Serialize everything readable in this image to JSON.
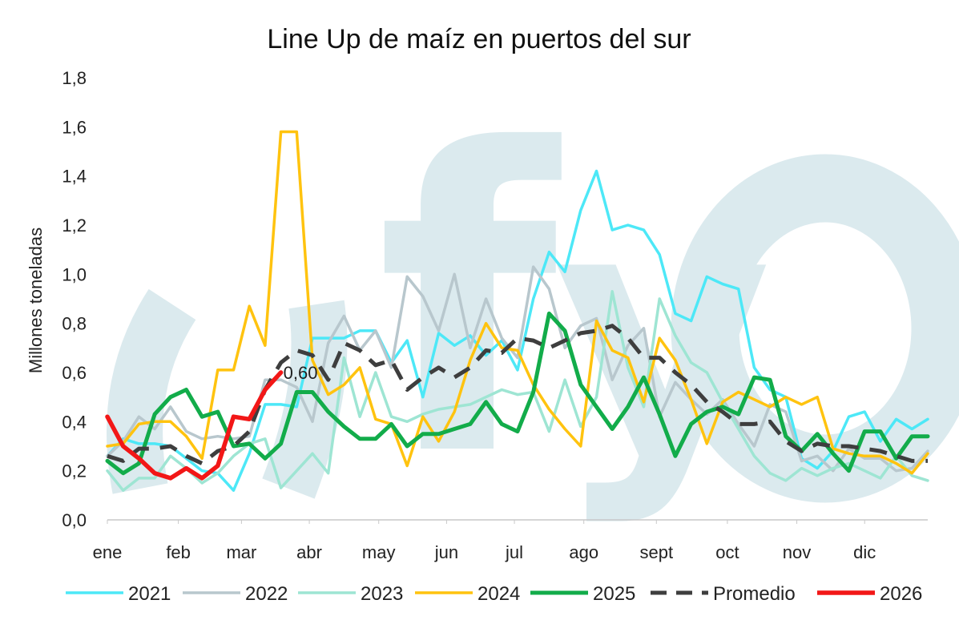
{
  "chart_data": {
    "type": "line",
    "title": "Line Up de maíz en puertos del sur",
    "xlabel": "",
    "ylabel": "Millones toneladas",
    "ylim": [
      0,
      1.8
    ],
    "yticks": [
      "0,0",
      "0,2",
      "0,4",
      "0,6",
      "0,8",
      "1,0",
      "1,2",
      "1,4",
      "1,6",
      "1,8"
    ],
    "xlim": [
      1,
      53
    ],
    "month_labels": [
      "ene",
      "feb",
      "mar",
      "abr",
      "may",
      "jun",
      "jul",
      "ago",
      "sept",
      "oct",
      "nov",
      "dic"
    ],
    "month_label_weeks": [
      1,
      5.5,
      9.5,
      13.8,
      18.2,
      22.5,
      26.8,
      31.2,
      35.8,
      40.3,
      44.7,
      49
    ],
    "watermark": "fyo",
    "annotation": {
      "text": "0,60",
      "x": 12,
      "y": 0.6
    },
    "legend_position": "bottom",
    "grid": false,
    "series": [
      {
        "name": "2021",
        "color": "#4de8f7",
        "width": 3.5,
        "dash": false,
        "values": [
          0.26,
          0.33,
          0.31,
          0.31,
          0.3,
          0.25,
          0.2,
          0.19,
          0.12,
          0.27,
          0.47,
          0.47,
          0.46,
          0.74,
          0.74,
          0.74,
          0.77,
          0.77,
          0.64,
          0.73,
          0.5,
          0.76,
          0.71,
          0.75,
          0.67,
          0.73,
          0.61,
          0.9,
          1.09,
          1.01,
          1.26,
          1.42,
          1.18,
          1.2,
          1.18,
          1.08,
          0.84,
          0.81,
          0.99,
          0.96,
          0.94,
          0.62,
          0.53,
          0.5,
          0.25,
          0.21,
          0.28,
          0.42,
          0.44,
          0.32,
          0.41,
          0.37,
          0.41
        ]
      },
      {
        "name": "2022",
        "color": "#b8c7cd",
        "width": 3.5,
        "dash": false,
        "values": [
          0.26,
          0.32,
          0.42,
          0.37,
          0.46,
          0.36,
          0.33,
          0.34,
          0.33,
          0.34,
          0.57,
          0.57,
          0.54,
          0.4,
          0.72,
          0.83,
          0.69,
          0.77,
          0.62,
          0.99,
          0.91,
          0.77,
          1.0,
          0.7,
          0.9,
          0.74,
          0.66,
          1.03,
          0.94,
          0.7,
          0.79,
          0.82,
          0.57,
          0.71,
          0.78,
          0.42,
          0.56,
          0.49,
          0.43,
          0.49,
          0.39,
          0.3,
          0.47,
          0.44,
          0.24,
          0.26,
          0.2,
          0.29,
          0.25,
          0.25,
          0.2,
          0.21,
          0.28
        ]
      },
      {
        "name": "2023",
        "color": "#9ee5d3",
        "width": 3.5,
        "dash": false,
        "values": [
          0.2,
          0.12,
          0.17,
          0.17,
          0.26,
          0.21,
          0.15,
          0.19,
          0.26,
          0.31,
          0.33,
          0.13,
          0.2,
          0.27,
          0.19,
          0.66,
          0.42,
          0.6,
          0.42,
          0.4,
          0.43,
          0.45,
          0.46,
          0.47,
          0.5,
          0.53,
          0.51,
          0.52,
          0.36,
          0.57,
          0.38,
          0.5,
          0.93,
          0.62,
          0.46,
          0.9,
          0.75,
          0.64,
          0.6,
          0.48,
          0.37,
          0.26,
          0.19,
          0.16,
          0.21,
          0.18,
          0.21,
          0.23,
          0.2,
          0.17,
          0.26,
          0.18,
          0.16
        ]
      },
      {
        "name": "2024",
        "color": "#ffc30f",
        "width": 3.5,
        "dash": false,
        "values": [
          0.3,
          0.31,
          0.39,
          0.4,
          0.4,
          0.34,
          0.25,
          0.61,
          0.61,
          0.87,
          0.71,
          1.58,
          1.58,
          0.65,
          0.51,
          0.55,
          0.62,
          0.41,
          0.39,
          0.22,
          0.42,
          0.32,
          0.44,
          0.65,
          0.8,
          0.7,
          0.69,
          0.55,
          0.45,
          0.37,
          0.3,
          0.81,
          0.69,
          0.66,
          0.48,
          0.74,
          0.65,
          0.49,
          0.31,
          0.48,
          0.52,
          0.49,
          0.46,
          0.5,
          0.47,
          0.5,
          0.29,
          0.27,
          0.26,
          0.26,
          0.23,
          0.19,
          0.27
        ]
      },
      {
        "name": "2025",
        "color": "#12ac4a",
        "width": 5,
        "dash": false,
        "values": [
          0.24,
          0.19,
          0.23,
          0.43,
          0.5,
          0.53,
          0.42,
          0.44,
          0.3,
          0.31,
          0.25,
          0.31,
          0.52,
          0.52,
          0.44,
          0.38,
          0.33,
          0.33,
          0.39,
          0.3,
          0.35,
          0.35,
          0.37,
          0.39,
          0.48,
          0.39,
          0.36,
          0.52,
          0.84,
          0.77,
          0.55,
          0.46,
          0.37,
          0.46,
          0.58,
          0.43,
          0.26,
          0.39,
          0.44,
          0.46,
          0.43,
          0.58,
          0.57,
          0.34,
          0.28,
          0.35,
          0.27,
          0.2,
          0.36,
          0.36,
          0.25,
          0.34,
          0.34
        ]
      },
      {
        "name": "Promedio",
        "color": "#3e3e3e",
        "width": 5,
        "dash": true,
        "values": [
          0.26,
          0.24,
          0.29,
          0.29,
          0.3,
          0.26,
          0.23,
          0.28,
          0.3,
          0.36,
          0.53,
          0.64,
          0.69,
          0.67,
          0.57,
          0.72,
          0.69,
          0.63,
          0.65,
          0.53,
          0.58,
          0.62,
          0.58,
          0.62,
          0.69,
          0.68,
          0.74,
          0.73,
          0.7,
          0.73,
          0.76,
          0.77,
          0.79,
          0.74,
          0.66,
          0.66,
          0.6,
          0.55,
          0.48,
          0.44,
          0.39,
          0.39,
          0.4,
          0.32,
          0.28,
          0.31,
          0.3,
          0.3,
          0.29,
          0.28,
          0.26,
          0.24,
          0.24
        ]
      },
      {
        "name": "2026",
        "color": "#f21717",
        "width": 5.5,
        "dash": false,
        "values": [
          0.42,
          0.3,
          0.25,
          0.19,
          0.17,
          0.21,
          0.17,
          0.22,
          0.42,
          0.41,
          0.53,
          0.6
        ]
      }
    ]
  }
}
